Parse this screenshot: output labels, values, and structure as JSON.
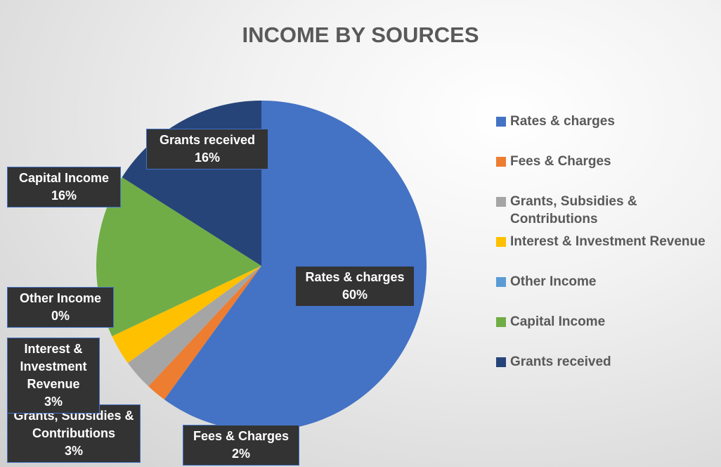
{
  "chart_data": {
    "type": "pie",
    "title": "INCOME BY SOURCES",
    "categories": [
      "Rates & charges",
      "Fees & Charges",
      "Grants, Subsidies & Contributions",
      "Interest & Investment Revenue",
      "Other Income",
      "Capital Income",
      "Grants received"
    ],
    "values": [
      60,
      2,
      3,
      3,
      0,
      16,
      16
    ],
    "value_labels": [
      "60%",
      "2%",
      "3%",
      "3%",
      "0%",
      "16%",
      "16%"
    ],
    "colors": [
      "#4472c4",
      "#ed7d31",
      "#a5a5a5",
      "#ffc000",
      "#5b9bd5",
      "#70ad47",
      "#264478"
    ],
    "legend": "right"
  }
}
